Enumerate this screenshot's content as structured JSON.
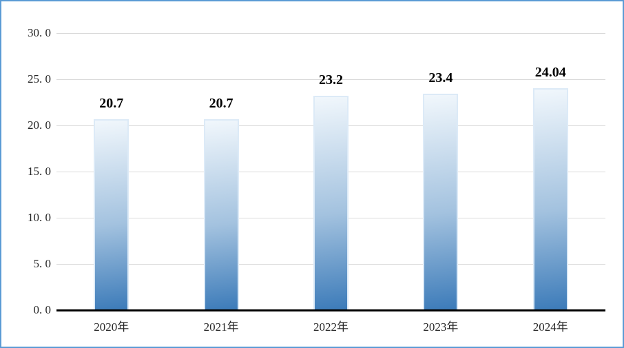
{
  "chart_data": {
    "type": "bar",
    "title": "",
    "categories": [
      "2020年",
      "2021年",
      "2022年",
      "2023年",
      "2024年"
    ],
    "values": [
      20.7,
      20.7,
      23.2,
      23.4,
      24.04
    ],
    "data_labels": [
      "20.7",
      "20.7",
      "23.2",
      "23.4",
      "24.04"
    ],
    "xlabel": "",
    "ylabel": "",
    "ylim": [
      0,
      30
    ],
    "grid": true,
    "legend": "none",
    "y_axis_ticks": [
      {
        "value": 30,
        "label": "30. 0"
      },
      {
        "value": 25,
        "label": "25. 0"
      },
      {
        "value": 20,
        "label": "20. 0"
      },
      {
        "value": 15,
        "label": "15. 0"
      },
      {
        "value": 10,
        "label": "10. 0"
      },
      {
        "value": 5,
        "label": "5. 0"
      },
      {
        "value": 0,
        "label": "0. 0"
      }
    ],
    "styles": {
      "frame_border_color": "#5b9bd5",
      "background_color": "#ffffff",
      "gridline_color": "#d9d9d9",
      "axis_line_color": "#000000",
      "bar_outline_color": "#dceaf7",
      "bar_gradient_top": "#f1f7fc",
      "bar_gradient_mid": "#a3c2df",
      "bar_gradient_bottom": "#3c7bb9",
      "tick_label_color": "#262626",
      "data_label_color": "#000000"
    }
  }
}
